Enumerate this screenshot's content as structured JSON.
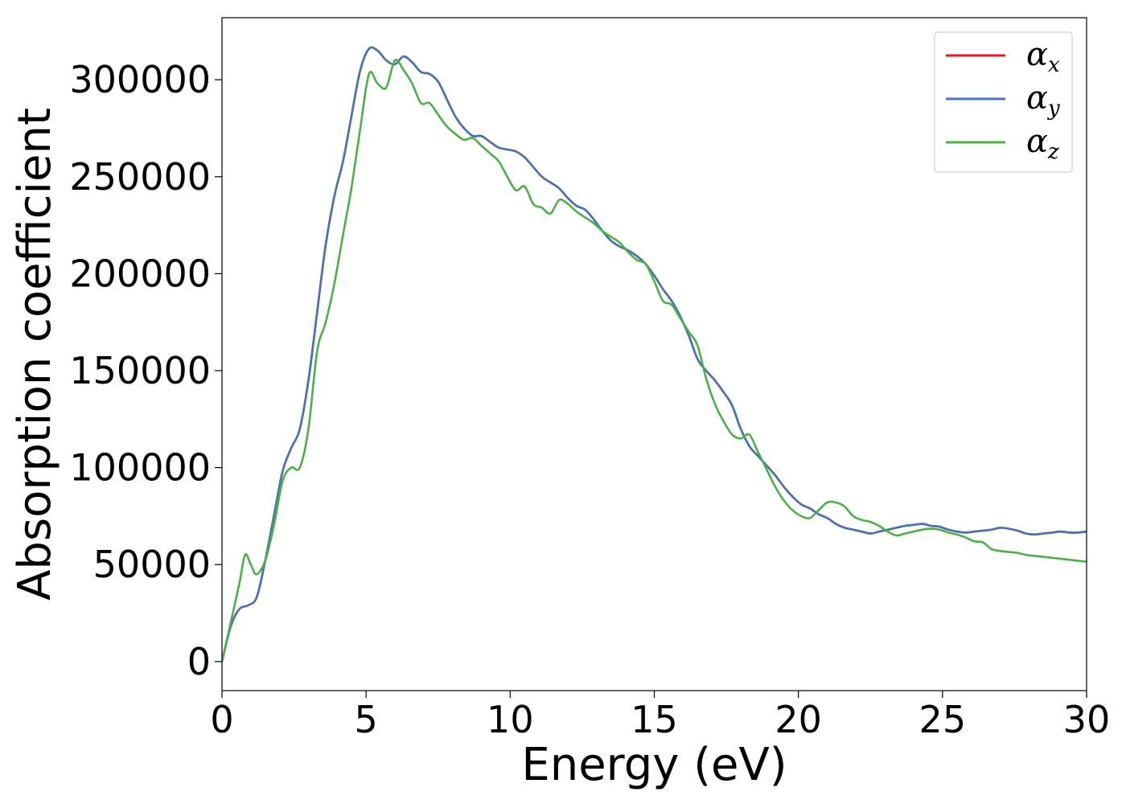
{
  "chart_data": {
    "type": "line",
    "title": "",
    "xlabel": "Energy (eV)",
    "ylabel": "Absorption coefficient",
    "xlim": [
      0,
      30
    ],
    "ylim": [
      -15000,
      332000
    ],
    "xticks": [
      0,
      5,
      10,
      15,
      20,
      25,
      30
    ],
    "xtick_labels": [
      "0",
      "5",
      "10",
      "15",
      "20",
      "25",
      "30"
    ],
    "yticks": [
      0,
      50000,
      100000,
      150000,
      200000,
      250000,
      300000
    ],
    "ytick_labels": [
      "0",
      "50000",
      "100000",
      "150000",
      "200000",
      "250000",
      "300000"
    ],
    "grid": false,
    "legend_position": "top-right",
    "series": [
      {
        "name": "α",
        "subscript": "x",
        "color": "#e41a1c",
        "x": [
          0,
          0.3,
          0.6,
          0.9,
          1.2,
          1.5,
          1.8,
          2.1,
          2.4,
          2.7,
          3.0,
          3.3,
          3.6,
          3.9,
          4.2,
          4.5,
          4.8,
          5.1,
          5.4,
          5.7,
          6.0,
          6.3,
          6.6,
          6.9,
          7.2,
          7.5,
          7.8,
          8.1,
          8.4,
          8.7,
          9.0,
          9.3,
          9.6,
          9.9,
          10.2,
          10.5,
          10.8,
          11.1,
          11.4,
          11.7,
          12.0,
          12.3,
          12.6,
          12.9,
          13.2,
          13.5,
          13.8,
          14.1,
          14.4,
          14.7,
          15.0,
          15.3,
          15.6,
          15.9,
          16.2,
          16.5,
          16.8,
          17.1,
          17.4,
          17.7,
          18.0,
          18.3,
          18.6,
          18.9,
          19.2,
          19.5,
          19.8,
          20.1,
          20.4,
          20.7,
          21.0,
          21.3,
          21.6,
          21.9,
          22.2,
          22.5,
          22.8,
          23.1,
          23.4,
          23.7,
          24.0,
          24.3,
          24.6,
          24.9,
          25.2,
          25.5,
          25.8,
          26.1,
          26.4,
          26.7,
          27.0,
          27.3,
          27.6,
          27.9,
          28.2,
          28.5,
          28.8,
          29.1,
          29.4,
          29.7,
          30.0
        ],
        "values": [
          0,
          18000,
          27000,
          29000,
          33000,
          52000,
          75000,
          98000,
          110000,
          120000,
          145000,
          180000,
          215000,
          240000,
          258000,
          282000,
          305000,
          316000,
          315000,
          310000,
          308000,
          312000,
          309000,
          304000,
          303000,
          299000,
          290000,
          281000,
          275000,
          271000,
          271000,
          268000,
          265000,
          264000,
          263000,
          260000,
          255000,
          250000,
          247000,
          244000,
          239000,
          235000,
          233000,
          228000,
          222000,
          217000,
          214000,
          212000,
          209000,
          205000,
          199000,
          192000,
          186000,
          178000,
          168000,
          156000,
          150000,
          145000,
          139000,
          132000,
          120000,
          111000,
          106000,
          101000,
          96000,
          90000,
          85000,
          81000,
          79000,
          76000,
          74000,
          71000,
          69000,
          68000,
          67000,
          66000,
          67000,
          68000,
          69000,
          70000,
          70500,
          71000,
          70000,
          69500,
          68000,
          67000,
          66500,
          67000,
          67500,
          68000,
          69000,
          68500,
          67500,
          66000,
          65500,
          66000,
          66500,
          67000,
          66500,
          66500,
          67000
        ]
      },
      {
        "name": "α",
        "subscript": "y",
        "color": "#4575b4",
        "x": [
          0,
          0.3,
          0.6,
          0.9,
          1.2,
          1.5,
          1.8,
          2.1,
          2.4,
          2.7,
          3.0,
          3.3,
          3.6,
          3.9,
          4.2,
          4.5,
          4.8,
          5.1,
          5.4,
          5.7,
          6.0,
          6.3,
          6.6,
          6.9,
          7.2,
          7.5,
          7.8,
          8.1,
          8.4,
          8.7,
          9.0,
          9.3,
          9.6,
          9.9,
          10.2,
          10.5,
          10.8,
          11.1,
          11.4,
          11.7,
          12.0,
          12.3,
          12.6,
          12.9,
          13.2,
          13.5,
          13.8,
          14.1,
          14.4,
          14.7,
          15.0,
          15.3,
          15.6,
          15.9,
          16.2,
          16.5,
          16.8,
          17.1,
          17.4,
          17.7,
          18.0,
          18.3,
          18.6,
          18.9,
          19.2,
          19.5,
          19.8,
          20.1,
          20.4,
          20.7,
          21.0,
          21.3,
          21.6,
          21.9,
          22.2,
          22.5,
          22.8,
          23.1,
          23.4,
          23.7,
          24.0,
          24.3,
          24.6,
          24.9,
          25.2,
          25.5,
          25.8,
          26.1,
          26.4,
          26.7,
          27.0,
          27.3,
          27.6,
          27.9,
          28.2,
          28.5,
          28.8,
          29.1,
          29.4,
          29.7,
          30.0
        ],
        "values": [
          0,
          18000,
          27000,
          29000,
          33000,
          52000,
          75000,
          98000,
          110000,
          120000,
          145000,
          180000,
          215000,
          240000,
          258000,
          282000,
          305000,
          316000,
          315000,
          310000,
          308000,
          312000,
          309000,
          304000,
          303000,
          299000,
          290000,
          281000,
          275000,
          271000,
          271000,
          268000,
          265000,
          264000,
          263000,
          260000,
          255000,
          250000,
          247000,
          244000,
          239000,
          235000,
          233000,
          228000,
          222000,
          217000,
          214000,
          212000,
          209000,
          205000,
          199000,
          192000,
          186000,
          178000,
          168000,
          156000,
          150000,
          145000,
          139000,
          132000,
          120000,
          111000,
          106000,
          101000,
          96000,
          90000,
          85000,
          81000,
          79000,
          76000,
          74000,
          71000,
          69000,
          68000,
          67000,
          66000,
          67000,
          68000,
          69000,
          70000,
          70500,
          71000,
          70000,
          69500,
          68000,
          67000,
          66500,
          67000,
          67500,
          68000,
          69000,
          68500,
          67500,
          66000,
          65500,
          66000,
          66500,
          67000,
          66500,
          66500,
          67000
        ]
      },
      {
        "name": "α",
        "subscript": "z",
        "color": "#4daf4a",
        "x": [
          0,
          0.3,
          0.6,
          0.8,
          1.0,
          1.2,
          1.5,
          1.8,
          2.1,
          2.4,
          2.7,
          3.0,
          3.3,
          3.6,
          3.9,
          4.2,
          4.5,
          4.8,
          5.1,
          5.4,
          5.7,
          6.0,
          6.3,
          6.6,
          6.9,
          7.2,
          7.5,
          7.8,
          8.1,
          8.4,
          8.7,
          9.0,
          9.3,
          9.6,
          9.9,
          10.2,
          10.5,
          10.8,
          11.1,
          11.4,
          11.7,
          12.0,
          12.3,
          12.6,
          12.9,
          13.2,
          13.5,
          13.8,
          14.1,
          14.4,
          14.7,
          15.0,
          15.3,
          15.6,
          15.9,
          16.2,
          16.5,
          16.8,
          17.1,
          17.4,
          17.7,
          18.0,
          18.3,
          18.6,
          18.9,
          19.2,
          19.5,
          19.8,
          20.1,
          20.4,
          20.7,
          21.0,
          21.3,
          21.6,
          21.9,
          22.2,
          22.5,
          22.8,
          23.1,
          23.4,
          23.7,
          24.0,
          24.3,
          24.6,
          24.9,
          25.2,
          25.5,
          25.8,
          26.1,
          26.4,
          26.7,
          27.0,
          27.3,
          27.6,
          27.9,
          28.2,
          28.5,
          28.8,
          29.1,
          29.4,
          29.7,
          30.0
        ],
        "values": [
          0,
          20000,
          40000,
          55000,
          50000,
          45000,
          52000,
          70000,
          93000,
          100000,
          100000,
          120000,
          160000,
          175000,
          195000,
          220000,
          245000,
          275000,
          303000,
          298000,
          296000,
          310000,
          305000,
          298000,
          288000,
          288000,
          282000,
          276000,
          272000,
          269000,
          270000,
          266000,
          262000,
          258000,
          250000,
          243000,
          245000,
          236000,
          234000,
          231000,
          238000,
          236000,
          232000,
          229000,
          226000,
          222000,
          219000,
          216000,
          211000,
          207000,
          205000,
          196000,
          186000,
          184000,
          177000,
          170000,
          163000,
          146000,
          133000,
          124000,
          117000,
          115000,
          117000,
          108000,
          99000,
          90000,
          83000,
          78000,
          75000,
          74000,
          78000,
          82000,
          82000,
          80000,
          75000,
          73000,
          72000,
          70000,
          67000,
          65000,
          66000,
          67000,
          68000,
          68500,
          68000,
          66500,
          65500,
          64000,
          62000,
          61500,
          58000,
          57000,
          56500,
          56000,
          55000,
          54500,
          54000,
          53500,
          53000,
          52500,
          52000,
          51500
        ]
      }
    ]
  }
}
